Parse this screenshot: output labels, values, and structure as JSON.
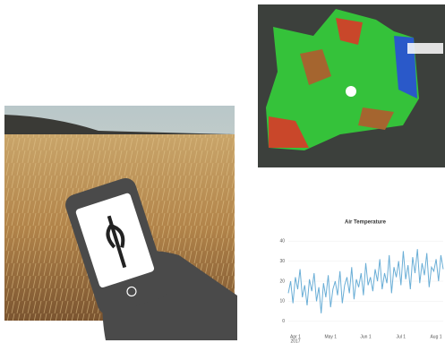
{
  "chart": {
    "type": "line",
    "title": "Air Temperature",
    "ylim": [
      -5,
      45
    ],
    "yticks": [
      0,
      10,
      20,
      30,
      40
    ],
    "xlabels": [
      "Apr 1",
      "May 1",
      "Jun 1",
      "Jul 1",
      "Aug 1"
    ],
    "xlabel_year": "2017",
    "color": "#6aaed6",
    "values": [
      14,
      20,
      9,
      22,
      16,
      26,
      12,
      18,
      8,
      21,
      15,
      24,
      10,
      17,
      4,
      19,
      12,
      23,
      7,
      16,
      20,
      13,
      25,
      9,
      18,
      22,
      14,
      27,
      11,
      21,
      17,
      24,
      13,
      29,
      18,
      22,
      15,
      26,
      20,
      31,
      16,
      24,
      19,
      33,
      14,
      27,
      22,
      30,
      18,
      35,
      21,
      28,
      16,
      32,
      24,
      36,
      19,
      29,
      23,
      34,
      17,
      27,
      25,
      31,
      20,
      33,
      26
    ]
  }
}
